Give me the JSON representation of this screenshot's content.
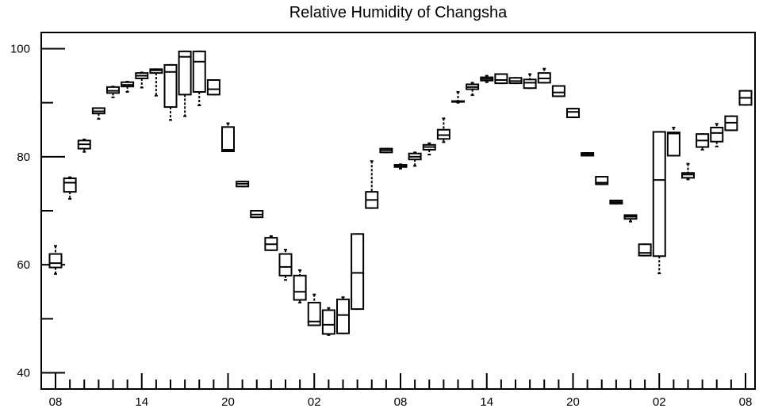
{
  "chart_data": {
    "type": "box",
    "title": "Relative Humidity of Changsha",
    "xlabel": "",
    "ylabel": "",
    "ylim": [
      37,
      103
    ],
    "yticks": [
      40,
      60,
      80,
      100
    ],
    "x_tick_labels": [
      "08",
      "14",
      "20",
      "02",
      "08",
      "14",
      "20",
      "02",
      "08"
    ],
    "x_tick_steps": [
      0,
      6,
      12,
      18,
      24,
      30,
      36,
      42,
      48
    ],
    "grid": false,
    "series": [
      {
        "boxes": [
          {
            "step": 0,
            "min": 58.3,
            "q1": 59.5,
            "median": 60.3,
            "q3": 62.0,
            "max": 63.5
          },
          {
            "step": 1,
            "min": 72.2,
            "q1": 73.5,
            "median": 75.2,
            "q3": 76.0,
            "max": 76.2
          },
          {
            "step": 2,
            "min": 80.9,
            "q1": 81.5,
            "median": 82.3,
            "q3": 83.0,
            "max": 83.2
          },
          {
            "step": 3,
            "min": 87.0,
            "q1": 88.0,
            "median": 88.4,
            "q3": 89.0,
            "max": 89.0
          },
          {
            "step": 4,
            "min": 91.0,
            "q1": 91.8,
            "median": 92.2,
            "q3": 92.9,
            "max": 93.0
          },
          {
            "step": 5,
            "min": 92.0,
            "q1": 93.0,
            "median": 93.3,
            "q3": 93.8,
            "max": 93.9
          },
          {
            "step": 6,
            "min": 92.8,
            "q1": 94.5,
            "median": 95.0,
            "q3": 95.5,
            "max": 95.6
          },
          {
            "step": 7,
            "min": 91.3,
            "q1": 95.5,
            "median": 96.0,
            "q3": 96.2,
            "max": 96.2
          },
          {
            "step": 8,
            "min": 86.8,
            "q1": 89.2,
            "median": 95.7,
            "q3": 97.0,
            "max": 97.0
          },
          {
            "step": 9,
            "min": 87.5,
            "q1": 91.5,
            "median": 98.5,
            "q3": 99.5,
            "max": 99.5
          },
          {
            "step": 10,
            "min": 89.5,
            "q1": 92.0,
            "median": 97.6,
            "q3": 99.5,
            "max": 99.5
          },
          {
            "step": 11,
            "min": 91.5,
            "q1": 91.5,
            "median": 92.5,
            "q3": 94.2,
            "max": 94.2
          },
          {
            "step": 12,
            "min": 81.0,
            "q1": 81.0,
            "median": 81.3,
            "q3": 85.5,
            "max": 86.2
          },
          {
            "step": 13,
            "min": 74.5,
            "q1": 74.5,
            "median": 75.0,
            "q3": 75.4,
            "max": 75.4
          },
          {
            "step": 14,
            "min": 68.8,
            "q1": 68.8,
            "median": 69.3,
            "q3": 70.0,
            "max": 70.0
          },
          {
            "step": 15,
            "min": 62.7,
            "q1": 62.7,
            "median": 63.8,
            "q3": 65.0,
            "max": 65.3
          },
          {
            "step": 16,
            "min": 57.2,
            "q1": 58.0,
            "median": 59.6,
            "q3": 62.0,
            "max": 62.8
          },
          {
            "step": 17,
            "min": 53.0,
            "q1": 53.5,
            "median": 55.0,
            "q3": 58.0,
            "max": 59.0
          },
          {
            "step": 18,
            "min": 48.8,
            "q1": 48.8,
            "median": 49.5,
            "q3": 53.0,
            "max": 54.5
          },
          {
            "step": 19,
            "min": 47.0,
            "q1": 47.2,
            "median": 48.9,
            "q3": 51.6,
            "max": 52.0
          },
          {
            "step": 20,
            "min": 47.3,
            "q1": 47.3,
            "median": 50.7,
            "q3": 53.6,
            "max": 54.0
          },
          {
            "step": 21,
            "min": 51.8,
            "q1": 51.8,
            "median": 58.5,
            "q3": 65.7,
            "max": 65.7
          },
          {
            "step": 22,
            "min": 70.5,
            "q1": 70.5,
            "median": 72.0,
            "q3": 73.5,
            "max": 79.2
          },
          {
            "step": 23,
            "min": 80.8,
            "q1": 80.8,
            "median": 81.2,
            "q3": 81.5,
            "max": 81.5
          },
          {
            "step": 24,
            "min": 77.8,
            "q1": 78.1,
            "median": 78.3,
            "q3": 78.5,
            "max": 78.6
          },
          {
            "step": 25,
            "min": 78.3,
            "q1": 79.5,
            "median": 80.0,
            "q3": 80.6,
            "max": 80.8
          },
          {
            "step": 26,
            "min": 80.4,
            "q1": 81.3,
            "median": 81.8,
            "q3": 82.2,
            "max": 82.5
          },
          {
            "step": 27,
            "min": 82.7,
            "q1": 83.3,
            "median": 84.0,
            "q3": 85.0,
            "max": 87.1
          },
          {
            "step": 28,
            "min": 90.0,
            "q1": 90.2,
            "median": 90.2,
            "q3": 90.3,
            "max": 92.0
          },
          {
            "step": 29,
            "min": 91.4,
            "q1": 92.5,
            "median": 92.9,
            "q3": 93.4,
            "max": 93.7
          },
          {
            "step": 30,
            "min": 93.8,
            "q1": 94.1,
            "median": 94.4,
            "q3": 94.7,
            "max": 95.0
          },
          {
            "step": 31,
            "min": 93.6,
            "q1": 93.6,
            "median": 94.2,
            "q3": 95.3,
            "max": 95.3
          },
          {
            "step": 32,
            "min": 93.6,
            "q1": 93.6,
            "median": 94.0,
            "q3": 94.6,
            "max": 94.6
          },
          {
            "step": 33,
            "min": 92.7,
            "q1": 92.7,
            "median": 93.7,
            "q3": 94.3,
            "max": 95.3
          },
          {
            "step": 34,
            "min": 93.7,
            "q1": 93.7,
            "median": 94.5,
            "q3": 95.5,
            "max": 96.3
          },
          {
            "step": 35,
            "min": 91.2,
            "q1": 91.2,
            "median": 91.9,
            "q3": 93.1,
            "max": 93.1
          },
          {
            "step": 36,
            "min": 87.3,
            "q1": 87.3,
            "median": 88.3,
            "q3": 88.9,
            "max": 88.9
          },
          {
            "step": 37,
            "min": 80.2,
            "q1": 80.2,
            "median": 80.5,
            "q3": 80.7,
            "max": 80.7
          },
          {
            "step": 38,
            "min": 74.9,
            "q1": 74.9,
            "median": 75.2,
            "q3": 76.3,
            "max": 76.3
          },
          {
            "step": 39,
            "min": 71.3,
            "q1": 71.3,
            "median": 71.6,
            "q3": 71.9,
            "max": 71.9
          },
          {
            "step": 40,
            "min": 68.0,
            "q1": 68.5,
            "median": 68.9,
            "q3": 69.2,
            "max": 69.2
          },
          {
            "step": 41,
            "min": 61.7,
            "q1": 61.7,
            "median": 62.2,
            "q3": 63.8,
            "max": 63.8
          },
          {
            "step": 42,
            "min": 58.4,
            "q1": 61.6,
            "median": 75.7,
            "q3": 84.6,
            "max": 84.6
          },
          {
            "step": 43,
            "min": 80.2,
            "q1": 80.2,
            "median": 84.3,
            "q3": 84.5,
            "max": 85.4
          },
          {
            "step": 44,
            "min": 75.8,
            "q1": 76.1,
            "median": 76.7,
            "q3": 77.0,
            "max": 78.7
          },
          {
            "step": 45,
            "min": 81.3,
            "q1": 81.8,
            "median": 83.0,
            "q3": 84.2,
            "max": 84.2
          },
          {
            "step": 46,
            "min": 81.9,
            "q1": 82.8,
            "median": 84.4,
            "q3": 85.4,
            "max": 86.1
          },
          {
            "step": 47,
            "min": 84.9,
            "q1": 84.9,
            "median": 86.3,
            "q3": 87.5,
            "max": 87.5
          },
          {
            "step": 48,
            "min": 89.6,
            "q1": 89.6,
            "median": 90.9,
            "q3": 92.2,
            "max": 92.2
          }
        ]
      }
    ]
  }
}
